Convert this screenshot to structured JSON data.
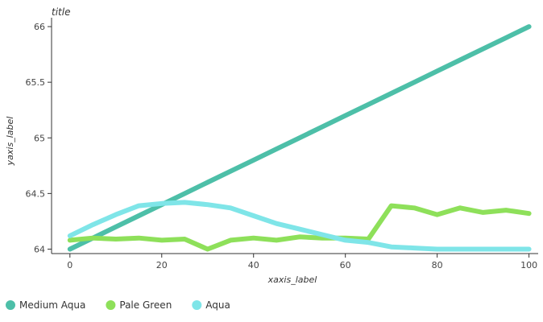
{
  "chart_data": {
    "type": "line",
    "title": "title",
    "xlabel": "xaxis_label",
    "ylabel": "yaxis_label",
    "xlim": [
      -4,
      102
    ],
    "ylim": [
      63.96,
      66.08
    ],
    "x_ticks": [
      0,
      20,
      40,
      60,
      80,
      100
    ],
    "y_ticks": [
      64,
      64.5,
      65,
      65.5,
      66
    ],
    "grid": false,
    "legend_position": "bottom",
    "series": [
      {
        "name": "Medium Aqua",
        "color": "#4dbfa8",
        "x": [
          0,
          5,
          10,
          15,
          20,
          25,
          30,
          35,
          40,
          45,
          50,
          55,
          60,
          65,
          70,
          75,
          80,
          85,
          90,
          95,
          100
        ],
        "y": [
          64,
          64.1,
          64.2,
          64.3,
          64.4,
          64.5,
          64.6,
          64.7,
          64.8,
          64.9,
          65,
          65.1,
          65.2,
          65.3,
          65.4,
          65.5,
          65.6,
          65.7,
          65.8,
          65.9,
          66
        ]
      },
      {
        "name": "Pale Green",
        "color": "#8ee05a",
        "x": [
          0,
          5,
          10,
          15,
          20,
          25,
          30,
          35,
          40,
          45,
          50,
          55,
          60,
          65,
          70,
          75,
          80,
          85,
          90,
          95,
          100
        ],
        "y": [
          64.08,
          64.1,
          64.09,
          64.1,
          64.08,
          64.09,
          64,
          64.08,
          64.1,
          64.08,
          64.11,
          64.1,
          64.1,
          64.09,
          64.39,
          64.37,
          64.31,
          64.37,
          64.33,
          64.35,
          64.32
        ]
      },
      {
        "name": "Aqua",
        "color": "#7fe5e8",
        "x": [
          0,
          5,
          10,
          15,
          20,
          25,
          30,
          35,
          40,
          45,
          50,
          55,
          60,
          65,
          70,
          75,
          80,
          85,
          90,
          95,
          100
        ],
        "y": [
          64.12,
          64.22,
          64.31,
          64.39,
          64.41,
          64.42,
          64.4,
          64.37,
          64.3,
          64.23,
          64.18,
          64.13,
          64.08,
          64.06,
          64.02,
          64.01,
          64,
          64,
          64,
          64,
          64
        ]
      }
    ]
  }
}
